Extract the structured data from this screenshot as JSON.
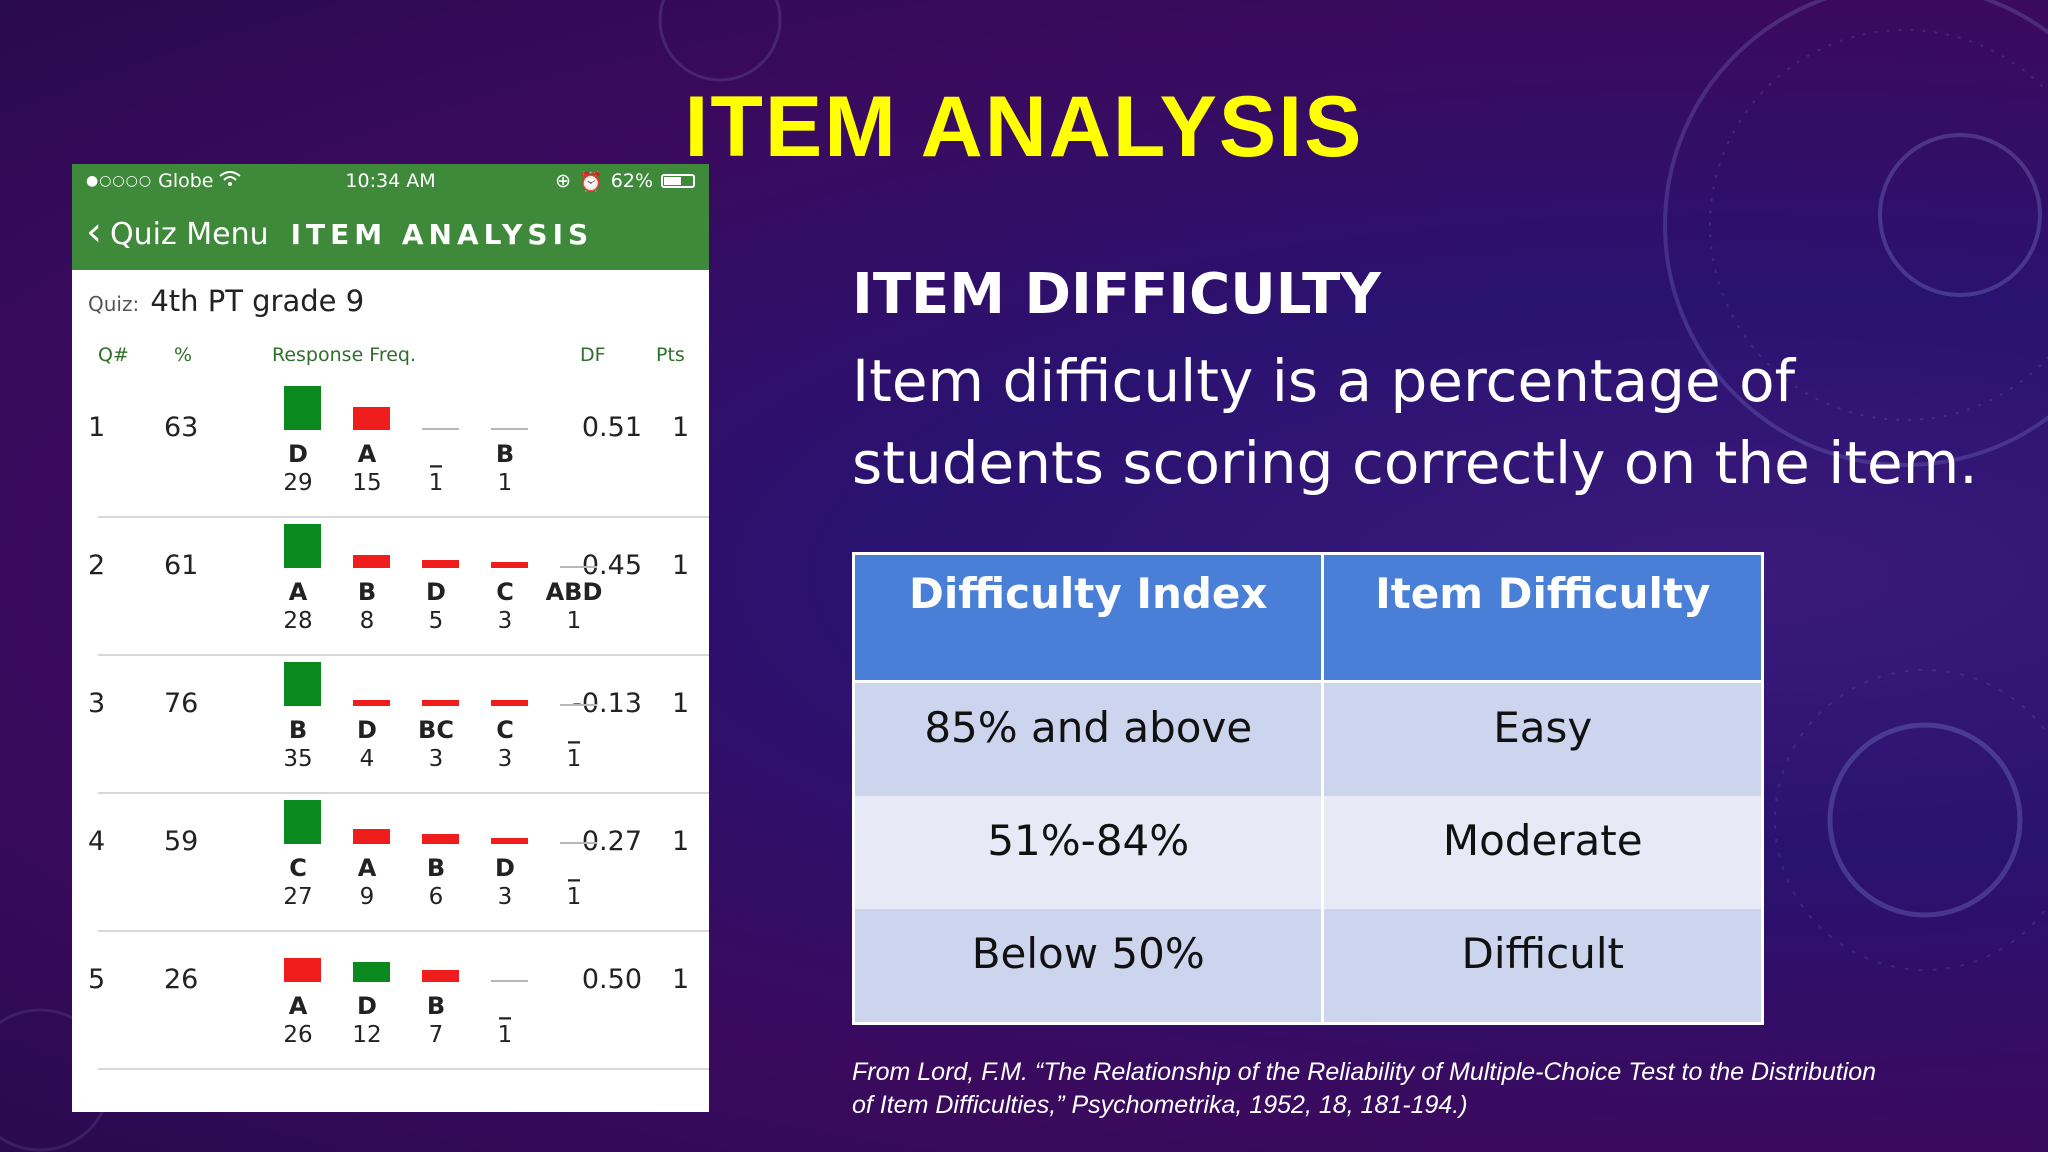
{
  "slide": {
    "title": "ITEM ANALYSIS",
    "subheading": "ITEM DIFFICULTY",
    "body_line1": " Item difficulty is a percentage of",
    "body_line2": "students scoring correctly on the item.",
    "citation_line1": "From Lord, F.M. “The Relationship of the Reliability of Multiple-Choice Test to the Distribution",
    "citation_line2": "of Item Difficulties,” Psychometrika, 1952, 18, 181-194.)"
  },
  "phone": {
    "statusbar": {
      "carrier": "Globe",
      "time": "10:34 AM",
      "battery": "62%",
      "battery_level": 0.62
    },
    "navbar": {
      "back_label": "Quiz Menu",
      "title": "ITEM ANALYSIS"
    },
    "quiz_label": "Quiz:",
    "quiz_name": "4th PT grade 9",
    "columns": {
      "q": "Q#",
      "pct": "%",
      "resp": "Response Freq.",
      "df": "DF",
      "pts": "Pts"
    },
    "rows": [
      {
        "q": "1",
        "pct": "63",
        "df": "0.51",
        "pts": "1",
        "responses": [
          {
            "letter": "D",
            "count": "29",
            "color": "green"
          },
          {
            "letter": "A",
            "count": "15",
            "color": "red"
          },
          {
            "letter": "_",
            "count": "1",
            "color": "grey"
          },
          {
            "letter": "B",
            "count": "1",
            "color": "grey"
          }
        ]
      },
      {
        "q": "2",
        "pct": "61",
        "df": "0.45",
        "pts": "1",
        "responses": [
          {
            "letter": "A",
            "count": "28",
            "color": "green"
          },
          {
            "letter": "B",
            "count": "8",
            "color": "red"
          },
          {
            "letter": "D",
            "count": "5",
            "color": "red"
          },
          {
            "letter": "C",
            "count": "3",
            "color": "red"
          },
          {
            "letter": "ABD",
            "count": "1",
            "color": "grey"
          }
        ]
      },
      {
        "q": "3",
        "pct": "76",
        "df": "-0.13",
        "pts": "1",
        "responses": [
          {
            "letter": "B",
            "count": "35",
            "color": "green"
          },
          {
            "letter": "D",
            "count": "4",
            "color": "red"
          },
          {
            "letter": "BC",
            "count": "3",
            "color": "red"
          },
          {
            "letter": "C",
            "count": "3",
            "color": "red"
          },
          {
            "letter": "_",
            "count": "1",
            "color": "grey"
          }
        ]
      },
      {
        "q": "4",
        "pct": "59",
        "df": "0.27",
        "pts": "1",
        "responses": [
          {
            "letter": "C",
            "count": "27",
            "color": "green"
          },
          {
            "letter": "A",
            "count": "9",
            "color": "red"
          },
          {
            "letter": "B",
            "count": "6",
            "color": "red"
          },
          {
            "letter": "D",
            "count": "3",
            "color": "red"
          },
          {
            "letter": "_",
            "count": "1",
            "color": "grey"
          }
        ]
      },
      {
        "q": "5",
        "pct": "26",
        "df": "0.50",
        "pts": "1",
        "responses": [
          {
            "letter": "A",
            "count": "26",
            "color": "red"
          },
          {
            "letter": "D",
            "count": "12",
            "color": "green"
          },
          {
            "letter": "B",
            "count": "7",
            "color": "red"
          },
          {
            "letter": "_",
            "count": "1",
            "color": "grey"
          }
        ]
      }
    ]
  },
  "table": {
    "headers": [
      "Difficulty Index",
      "Item Difficulty"
    ],
    "rows": [
      [
        "85% and above",
        "Easy"
      ],
      [
        "51%-84%",
        "Moderate"
      ],
      [
        "Below 50%",
        "Difficult"
      ]
    ]
  },
  "colors": {
    "title": "#ffff00",
    "green": "#0a8a1e",
    "red": "#f01d1d",
    "grey": "#b8b8b8",
    "header_blue": "#4a7fd8"
  }
}
